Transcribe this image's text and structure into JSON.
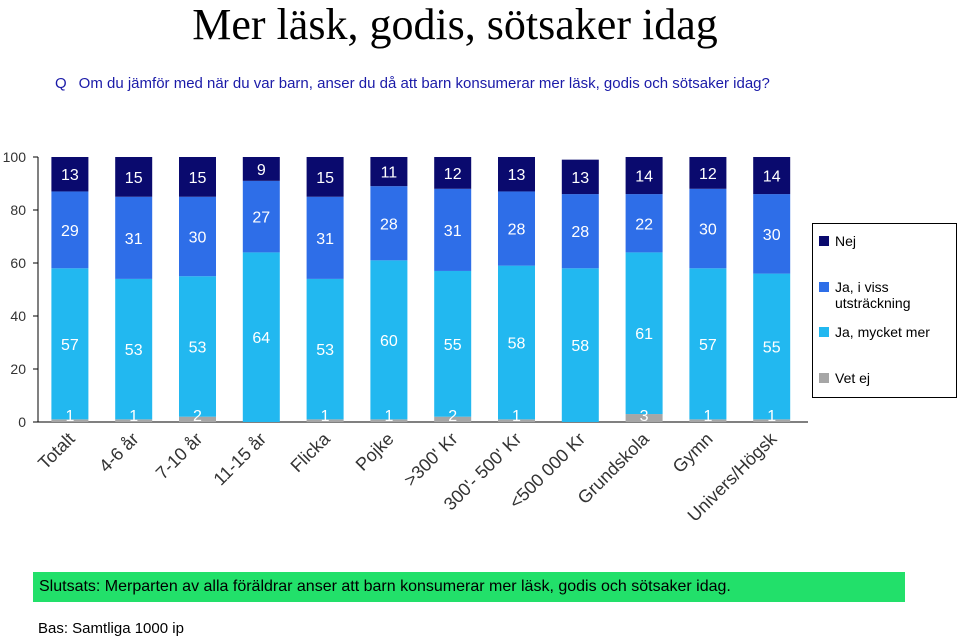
{
  "title": "Mer läsk, godis, sötsaker idag",
  "question": {
    "prefix": "Q",
    "text": "Om du jämför med när du var barn, anser du då att barn konsumerar mer läsk, godis och sötsaker idag?"
  },
  "chart_data": {
    "type": "bar",
    "stacked": true,
    "categories": [
      "Totalt",
      "4-6 år",
      "7-10 år",
      "11-15 år",
      "Flicka",
      "Pojke",
      ">300' Kr",
      "300'- 500' Kr",
      "<500 000 Kr",
      "Grundskola",
      "Gymn",
      "Univers/Högsk"
    ],
    "series": [
      {
        "name": "Vet ej",
        "color": "#a6a6a6",
        "values": [
          1,
          1,
          2,
          0,
          1,
          1,
          2,
          1,
          0,
          3,
          1,
          1
        ],
        "labels": [
          "1",
          "1",
          "2",
          "",
          "1",
          "1",
          "2",
          "1",
          "",
          "3",
          "1",
          "1"
        ]
      },
      {
        "name": "Ja, mycket mer",
        "color": "#22b8f0",
        "values": [
          57,
          53,
          53,
          64,
          53,
          60,
          55,
          58,
          58,
          61,
          57,
          55
        ]
      },
      {
        "name": "Ja, i viss utsträckning",
        "color": "#2e6ee8",
        "values": [
          29,
          31,
          30,
          27,
          31,
          28,
          31,
          28,
          28,
          22,
          30,
          30
        ]
      },
      {
        "name": "Nej",
        "color": "#0a0a6e",
        "values": [
          13,
          15,
          15,
          9,
          15,
          11,
          12,
          13,
          13,
          14,
          12,
          14
        ]
      }
    ],
    "ylim": [
      0,
      100
    ],
    "yticks": [
      "0",
      "20",
      "40",
      "60",
      "80",
      "100"
    ],
    "legend_order": [
      "Nej",
      "Ja, i viss utsträckning",
      "Ja, mycket mer",
      "Vet ej"
    ],
    "legend_position": "right",
    "grid": false
  },
  "conclusion": "Slutsats: Merparten av alla föräldrar anser att barn konsumerar mer läsk, godis och sötsaker idag.",
  "base": "Bas: Samtliga 1000 ip"
}
